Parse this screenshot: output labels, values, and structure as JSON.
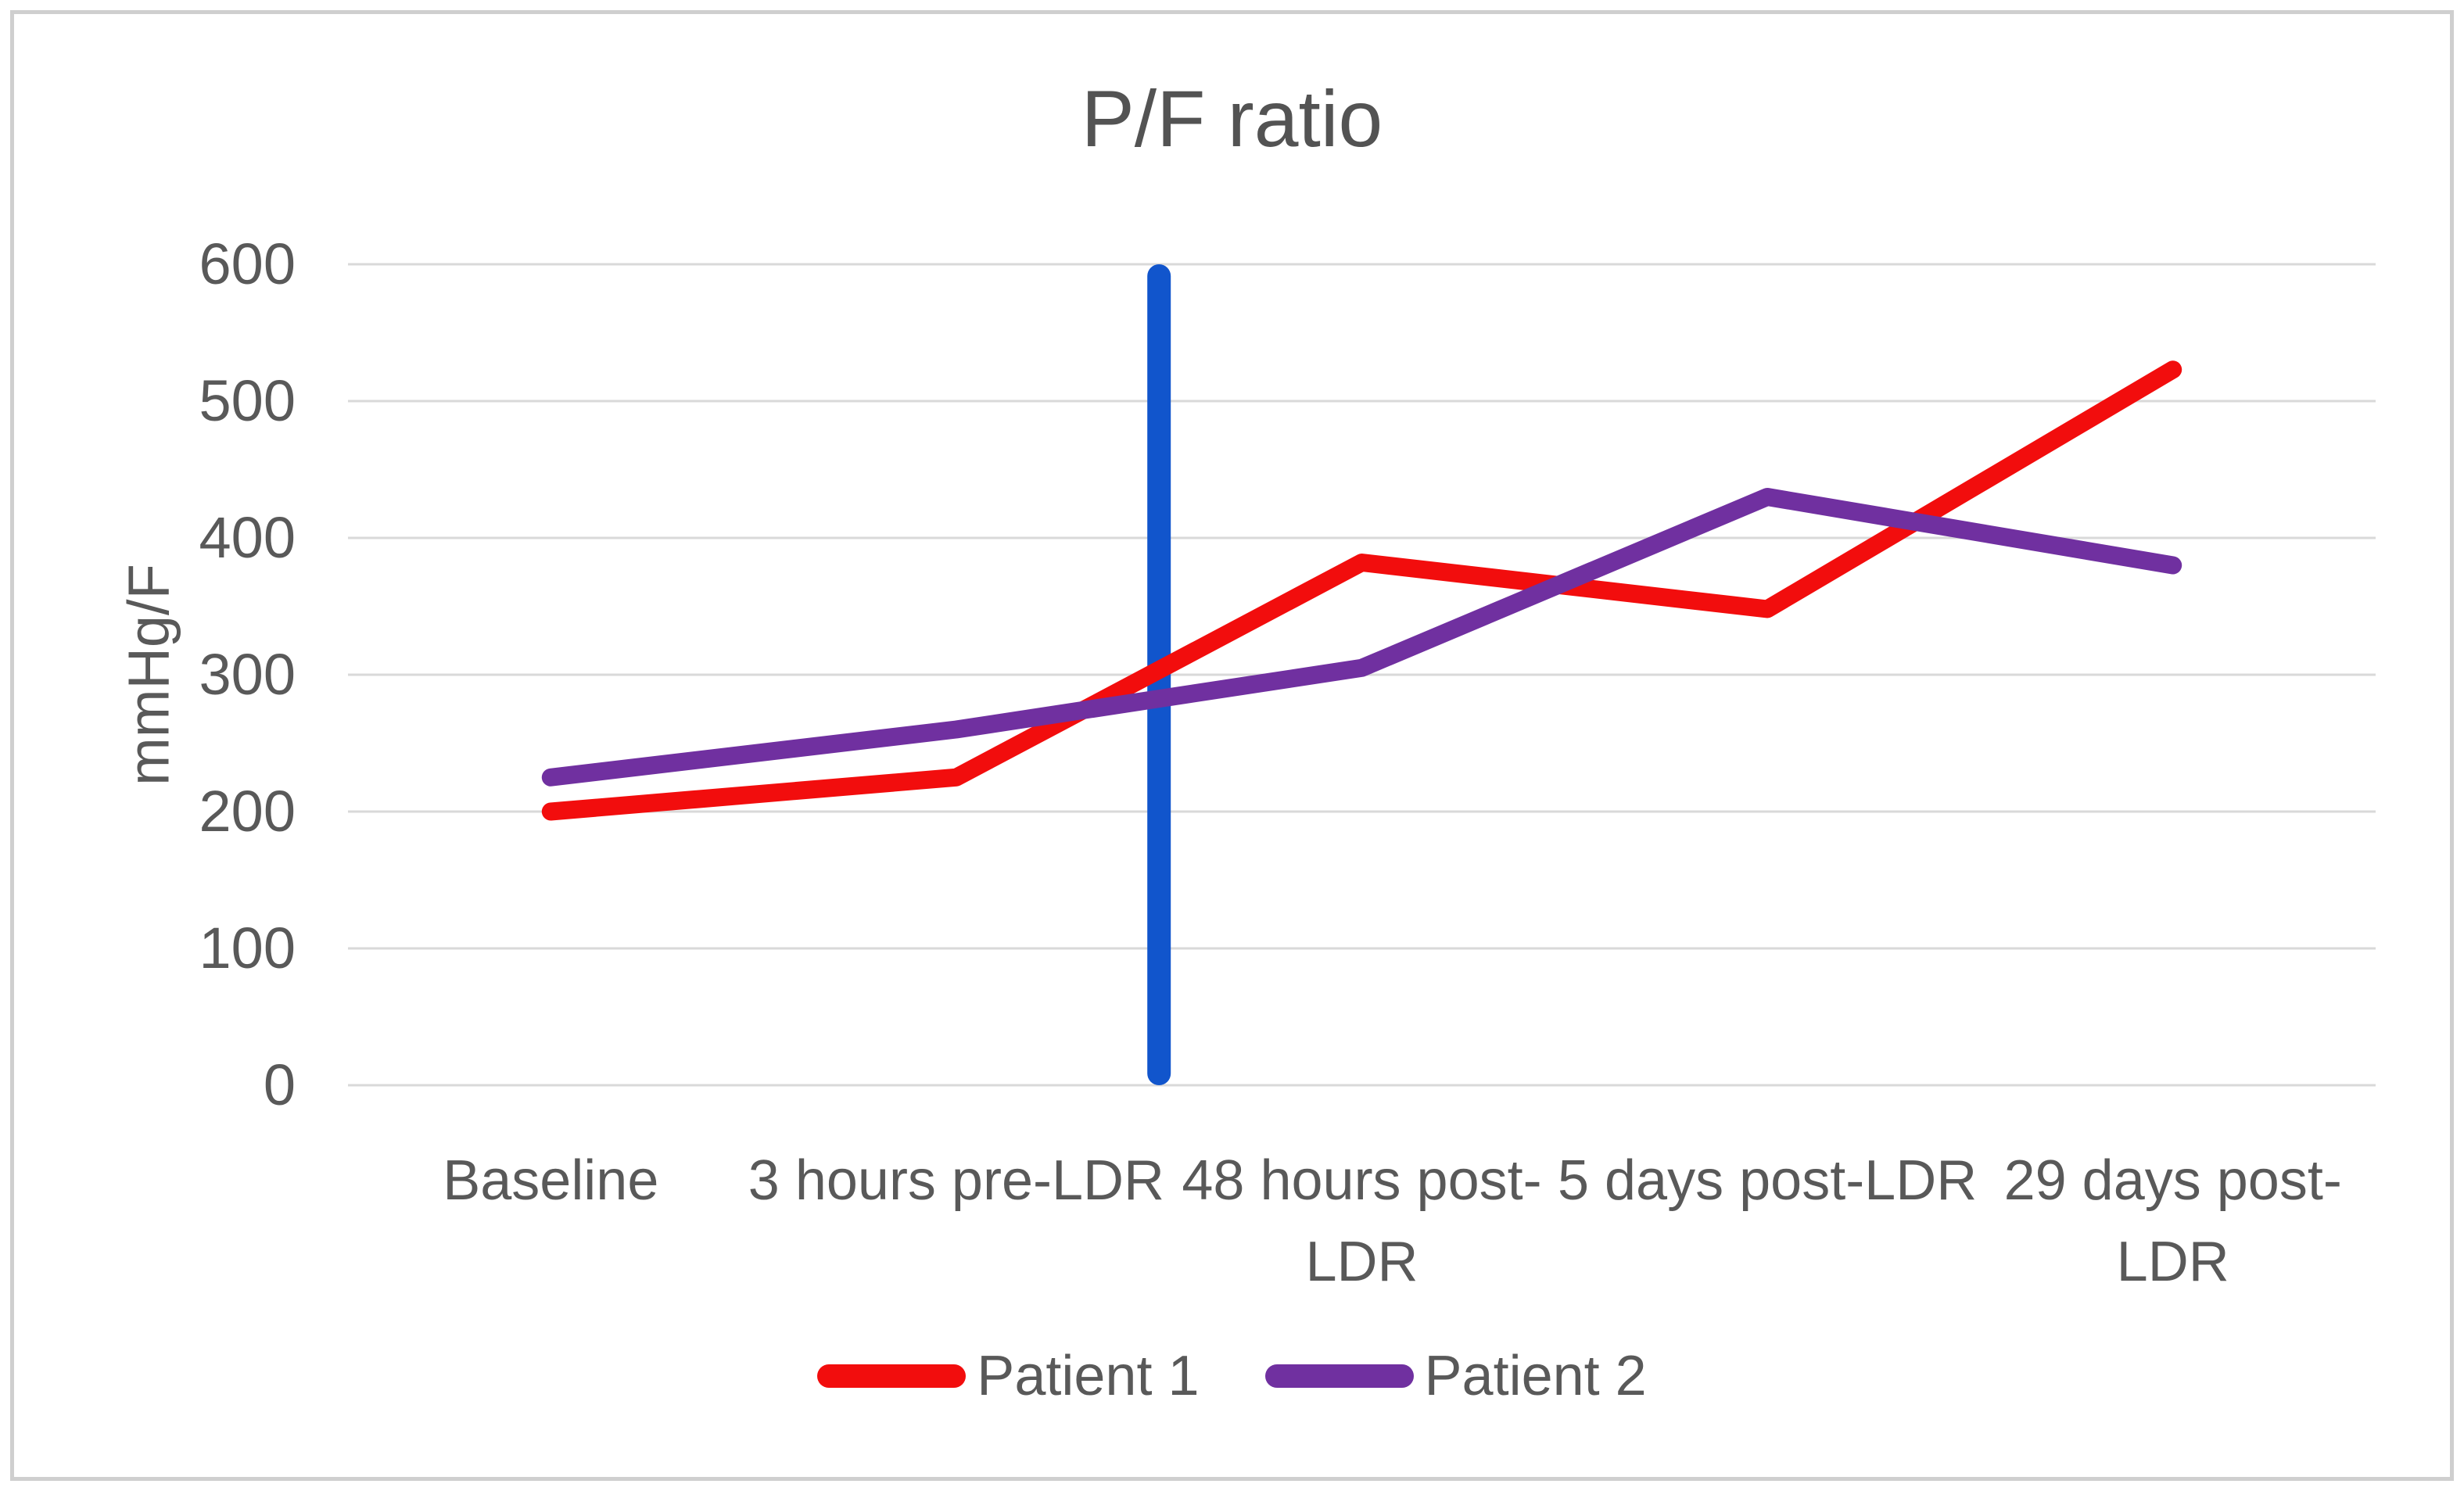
{
  "chart_data": {
    "type": "line",
    "title": "P/F ratio",
    "xlabel": "",
    "ylabel": "mmHg/F",
    "ylim": [
      0,
      600
    ],
    "yticks": [
      0,
      100,
      200,
      300,
      400,
      500,
      600
    ],
    "grid": true,
    "legend_position": "bottom",
    "categories": [
      "Baseline",
      "3 hours pre-LDR",
      "48 hours post-LDR",
      "5 days post-LDR",
      "29 days post-LDR"
    ],
    "categories_wrapped": [
      [
        "Baseline"
      ],
      [
        "3 hours pre-LDR"
      ],
      [
        "48 hours post-",
        "LDR"
      ],
      [
        "5 days post-LDR"
      ],
      [
        "29 days post-",
        "LDR"
      ]
    ],
    "series": [
      {
        "name": "Patient 1",
        "color": "#f20d0d",
        "values": [
          200,
          225,
          382,
          348,
          523
        ]
      },
      {
        "name": "Patient 2",
        "color": "#7030a0",
        "values": [
          225,
          260,
          305,
          430,
          380
        ]
      }
    ],
    "event_line": {
      "description": "vertical marker line between pre-LDR and post-LDR measurements",
      "between_categories": [
        "3 hours pre-LDR",
        "48 hours post-LDR"
      ],
      "y_span": [
        0,
        600
      ],
      "color": "#1155cc"
    },
    "colors": {
      "gridline": "#d9d9d9",
      "axis_text": "#595959",
      "title_text": "#535353",
      "frame_border": "#cfcfcf",
      "background": "#ffffff"
    }
  }
}
